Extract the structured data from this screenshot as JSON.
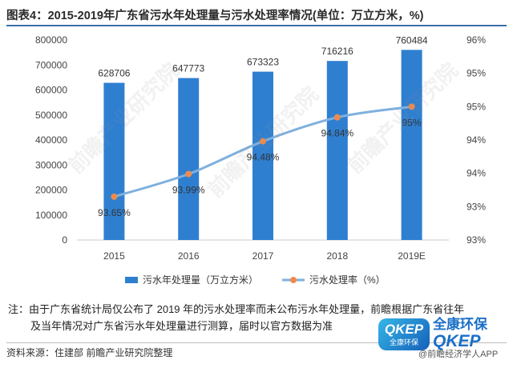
{
  "title": "图表4：2015-2019年广东省污水年处理量与污水处理率情况(单位：万立方米，%)",
  "note_line1": "注：由于广东省统计局仅公布了 2019 年的污水处理率而未公布污水年处理量，前瞻根据广东省往年",
  "note_line2": "及当年情况对广东省污水年处理量进行测算，届时以官方数据为准",
  "source": "资料来源：住建部 前瞻产业研究院整理",
  "watermark": "前瞻产业研究院",
  "logo": {
    "big": "QKEP",
    "small": "全康环保",
    "brand_cn": "全康环保",
    "brand_en": "QKEP",
    "app": "@前瞻经济学人APP"
  },
  "colors": {
    "bar": "#2f7fd1",
    "line": "#7fb0de",
    "marker": "#f08a4b",
    "axis": "#cccccc",
    "text": "#444444"
  },
  "chart_data": {
    "type": "bar",
    "categories": [
      "2015",
      "2016",
      "2017",
      "2018",
      "2019E"
    ],
    "series": [
      {
        "name": "污水年处理量（万立方米）",
        "type": "bar",
        "axis": "left",
        "values": [
          628706,
          647773,
          673323,
          716216,
          760484
        ],
        "labels": [
          "628706",
          "647773",
          "673323",
          "716216",
          "760484"
        ]
      },
      {
        "name": "污水处理率（%）",
        "type": "line",
        "axis": "right",
        "values": [
          93.65,
          93.99,
          94.48,
          94.84,
          95.0
        ],
        "labels": [
          "93.65%",
          "93.99%",
          "94.48%",
          "94.84%",
          "95%"
        ]
      }
    ],
    "y_left": {
      "ylim": [
        0,
        800000
      ],
      "ticks": [
        "0",
        "100000",
        "200000",
        "300000",
        "400000",
        "500000",
        "600000",
        "700000",
        "800000"
      ]
    },
    "y_right": {
      "ylim": [
        93.0,
        96.0
      ],
      "ticks": [
        "93%",
        "93%",
        "94%",
        "94%",
        "95%",
        "95%",
        "96%"
      ]
    },
    "legend_position": "bottom",
    "grid": false
  }
}
